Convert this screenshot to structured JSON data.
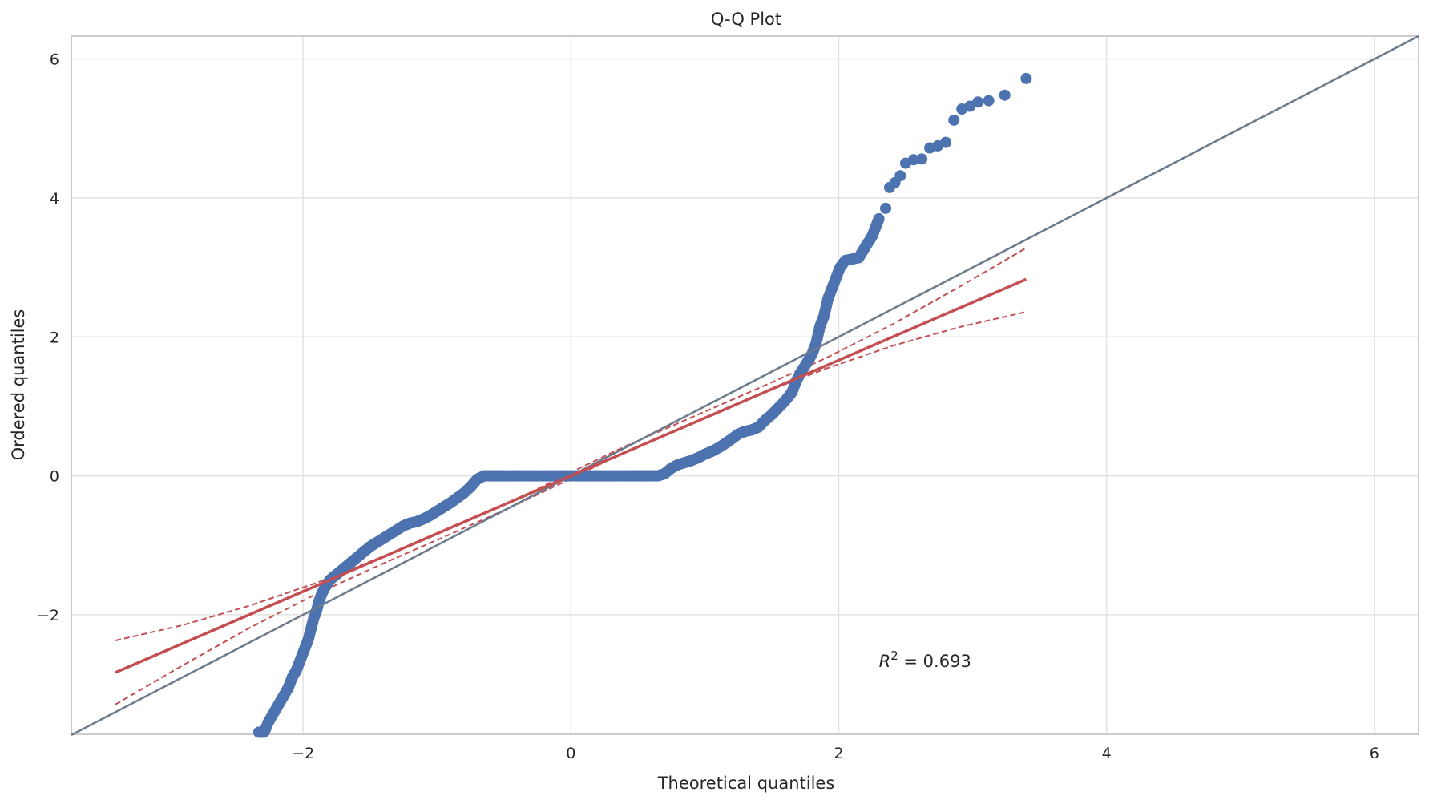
{
  "chart_data": {
    "type": "scatter",
    "title": "Q-Q Plot",
    "xlabel": "Theoretical quantiles",
    "ylabel": "Ordered quantiles",
    "xlim": [
      -3.73,
      6.33
    ],
    "ylim": [
      -3.72,
      6.33
    ],
    "xticks": [
      -2,
      0,
      2,
      4,
      6
    ],
    "yticks": [
      -2,
      0,
      2,
      4,
      6
    ],
    "xtick_labels": [
      "−2",
      "0",
      "2",
      "4",
      "6"
    ],
    "ytick_labels": [
      "−2",
      "0",
      "2",
      "4",
      "6"
    ],
    "grid": true,
    "annotation": {
      "x": 2.3,
      "y": -2.75,
      "symbol": "R",
      "exponent": "2",
      "text": " = 0.693"
    },
    "colors": {
      "points": "#4c72b0",
      "fit": "#c44e52",
      "reference": "#6b7b8c",
      "grid": "#e3e3e3",
      "spine": "#cccccc"
    },
    "reference_line": {
      "points": [
        [
          -3.73,
          -3.73
        ],
        [
          6.33,
          6.33
        ]
      ]
    },
    "fit_line": {
      "points": [
        [
          -3.4,
          -2.83
        ],
        [
          3.4,
          2.83
        ]
      ]
    },
    "confidence_band": {
      "upper": [
        [
          -3.4,
          -2.37
        ],
        [
          -2.9,
          -2.15
        ],
        [
          -2.4,
          -1.87
        ],
        [
          -1.9,
          -1.54
        ],
        [
          -1.4,
          -1.16
        ],
        [
          -0.9,
          -0.75
        ],
        [
          -0.4,
          -0.33
        ],
        [
          0,
          0.05
        ],
        [
          0.4,
          0.42
        ],
        [
          0.9,
          0.84
        ],
        [
          1.4,
          1.26
        ],
        [
          1.9,
          1.69
        ],
        [
          2.4,
          2.18
        ],
        [
          2.9,
          2.72
        ],
        [
          3.4,
          3.28
        ]
      ],
      "lower": [
        [
          -3.4,
          -3.29
        ],
        [
          -2.9,
          -2.73
        ],
        [
          -2.4,
          -2.19
        ],
        [
          -1.9,
          -1.7
        ],
        [
          -1.4,
          -1.26
        ],
        [
          -0.9,
          -0.84
        ],
        [
          -0.4,
          -0.41
        ],
        [
          0,
          -0.04
        ],
        [
          0.4,
          0.34
        ],
        [
          0.9,
          0.75
        ],
        [
          1.4,
          1.17
        ],
        [
          1.9,
          1.54
        ],
        [
          2.4,
          1.87
        ],
        [
          2.9,
          2.14
        ],
        [
          3.4,
          2.36
        ]
      ]
    },
    "points": [
      [
        -2.33,
        -3.69
      ],
      [
        -2.29,
        -3.69
      ],
      [
        -2.26,
        -3.55
      ],
      [
        -2.23,
        -3.45
      ],
      [
        -2.2,
        -3.35
      ],
      [
        -2.17,
        -3.25
      ],
      [
        -2.14,
        -3.15
      ],
      [
        -2.11,
        -3.05
      ],
      [
        -2.08,
        -2.9
      ],
      [
        -2.05,
        -2.8
      ],
      [
        -2.02,
        -2.65
      ],
      [
        -2.0,
        -2.55
      ],
      [
        -1.98,
        -2.45
      ],
      [
        -1.96,
        -2.35
      ],
      [
        -1.94,
        -2.2
      ],
      [
        -1.92,
        -2.05
      ],
      [
        -1.9,
        -1.95
      ],
      [
        -1.88,
        -1.8
      ],
      [
        -1.86,
        -1.7
      ],
      [
        -1.84,
        -1.62
      ],
      [
        -1.82,
        -1.56
      ],
      [
        -1.8,
        -1.5
      ],
      [
        -1.75,
        -1.42
      ],
      [
        -1.7,
        -1.34
      ],
      [
        -1.65,
        -1.26
      ],
      [
        -1.6,
        -1.18
      ],
      [
        -1.55,
        -1.1
      ],
      [
        -1.5,
        -1.02
      ],
      [
        -1.45,
        -0.96
      ],
      [
        -1.4,
        -0.9
      ],
      [
        -1.35,
        -0.84
      ],
      [
        -1.3,
        -0.78
      ],
      [
        -1.25,
        -0.72
      ],
      [
        -1.2,
        -0.68
      ],
      [
        -1.15,
        -0.66
      ],
      [
        -1.1,
        -0.62
      ],
      [
        -1.05,
        -0.57
      ],
      [
        -1.0,
        -0.51
      ],
      [
        -0.95,
        -0.45
      ],
      [
        -0.9,
        -0.39
      ],
      [
        -0.85,
        -0.32
      ],
      [
        -0.8,
        -0.25
      ],
      [
        -0.75,
        -0.16
      ],
      [
        -0.7,
        -0.05
      ],
      [
        -0.65,
        0.0
      ],
      [
        -0.5,
        0.0
      ],
      [
        -0.3,
        0.0
      ],
      [
        -0.1,
        0.0
      ],
      [
        0.1,
        0.0
      ],
      [
        0.3,
        0.0
      ],
      [
        0.5,
        0.0
      ],
      [
        0.65,
        0.0
      ],
      [
        0.7,
        0.03
      ],
      [
        0.75,
        0.11
      ],
      [
        0.8,
        0.16
      ],
      [
        0.85,
        0.19
      ],
      [
        0.9,
        0.22
      ],
      [
        0.95,
        0.26
      ],
      [
        1.0,
        0.31
      ],
      [
        1.05,
        0.35
      ],
      [
        1.1,
        0.4
      ],
      [
        1.15,
        0.46
      ],
      [
        1.2,
        0.53
      ],
      [
        1.25,
        0.6
      ],
      [
        1.3,
        0.64
      ],
      [
        1.35,
        0.66
      ],
      [
        1.4,
        0.7
      ],
      [
        1.45,
        0.8
      ],
      [
        1.5,
        0.88
      ],
      [
        1.55,
        0.98
      ],
      [
        1.6,
        1.08
      ],
      [
        1.65,
        1.2
      ],
      [
        1.68,
        1.35
      ],
      [
        1.72,
        1.5
      ],
      [
        1.76,
        1.62
      ],
      [
        1.8,
        1.75
      ],
      [
        1.83,
        1.9
      ],
      [
        1.86,
        2.15
      ],
      [
        1.89,
        2.3
      ],
      [
        1.92,
        2.55
      ],
      [
        1.95,
        2.7
      ],
      [
        1.98,
        2.85
      ],
      [
        2.01,
        3.0
      ],
      [
        2.05,
        3.1
      ],
      [
        2.1,
        3.12
      ],
      [
        2.15,
        3.14
      ],
      [
        2.2,
        3.3
      ],
      [
        2.25,
        3.45
      ],
      [
        2.3,
        3.7
      ],
      [
        2.35,
        3.85
      ],
      [
        2.38,
        4.15
      ],
      [
        2.42,
        4.22
      ],
      [
        2.46,
        4.32
      ],
      [
        2.5,
        4.5
      ],
      [
        2.56,
        4.55
      ],
      [
        2.62,
        4.56
      ],
      [
        2.68,
        4.72
      ],
      [
        2.74,
        4.75
      ],
      [
        2.8,
        4.8
      ],
      [
        2.86,
        5.12
      ],
      [
        2.92,
        5.28
      ],
      [
        2.98,
        5.32
      ],
      [
        3.04,
        5.38
      ],
      [
        3.12,
        5.4
      ],
      [
        3.24,
        5.48
      ],
      [
        3.4,
        5.72
      ]
    ]
  }
}
